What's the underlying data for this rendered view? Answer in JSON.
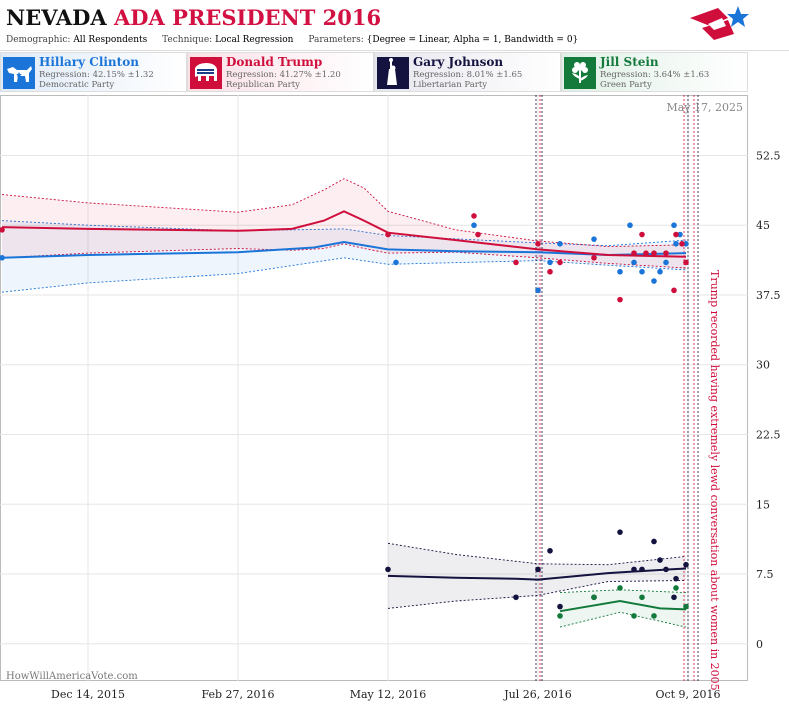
{
  "header": {
    "title_main": "NEVADA",
    "title_sub": "ADA PRESIDENT 2016",
    "params": [
      {
        "key": "Demographic:",
        "value": "All Respondents"
      },
      {
        "key": "Technique:",
        "value": "Local Regression"
      },
      {
        "key": "Parameters:",
        "value": "{Degree = Linear, Alpha = 1, Bandwidth = 0}"
      }
    ]
  },
  "candidates": [
    {
      "name": "Hillary Clinton",
      "regression": "Regression: 42.15% ±1.32",
      "party": "Democratic Party",
      "color": "#1b75d8",
      "bg": "#e6f0fb",
      "icon": "donkey-icon"
    },
    {
      "name": "Donald Trump",
      "regression": "Regression: 41.27% ±1.20",
      "party": "Republican Party",
      "color": "#cf0e3c",
      "bg": "#fbe5ea",
      "icon": "elephant-icon"
    },
    {
      "name": "Gary Johnson",
      "regression": "Regression: 8.01% ±1.65",
      "party": "Libertarian Party",
      "color": "#14123f",
      "bg": "#ececf2",
      "icon": "liberty-statue-icon"
    },
    {
      "name": "Jill Stein",
      "regression": "Regression: 3.64% ±1.63",
      "party": "Green Party",
      "color": "#137a3c",
      "bg": "#e6f3ea",
      "icon": "flower-icon"
    }
  ],
  "chart_data": {
    "type": "scatter",
    "title": "NEVADA ADA PRESIDENT 2016",
    "date_label": "May 17, 2025",
    "watermark": "HowWillAmericaVote.com",
    "annotation": "Trump recorded having extremely lewd conversation about women in 2005",
    "x_ticks": [
      "Dec 14, 2015",
      "Feb 27, 2016",
      "May 12, 2016",
      "Jul 26, 2016",
      "Oct 9, 2016"
    ],
    "x_range": [
      "2015-10-31",
      "2016-11-08"
    ],
    "y_ticks": [
      0,
      7.5,
      15,
      22.5,
      30,
      37.5,
      45,
      52.5
    ],
    "y_range": [
      -4,
      59
    ],
    "grid": true,
    "event_lines": [
      "2016-07-25",
      "2016-07-27",
      "2016-07-28",
      "2016-10-07",
      "2016-10-09",
      "2016-10-12",
      "2016-10-14"
    ],
    "series": [
      {
        "name": "Hillary Clinton",
        "color": "#1b75d8",
        "points": [
          [
            "2015-11-01",
            41.5
          ],
          [
            "2016-05-16",
            41
          ],
          [
            "2016-06-24",
            45
          ],
          [
            "2016-07-26",
            38
          ],
          [
            "2016-08-01",
            41
          ],
          [
            "2016-08-06",
            43
          ],
          [
            "2016-08-23",
            43.5
          ],
          [
            "2016-09-05",
            40
          ],
          [
            "2016-09-10",
            45
          ],
          [
            "2016-09-12",
            41
          ],
          [
            "2016-09-16",
            40
          ],
          [
            "2016-09-22",
            39
          ],
          [
            "2016-09-25",
            40
          ],
          [
            "2016-09-28",
            41
          ],
          [
            "2016-10-02",
            45
          ],
          [
            "2016-10-03",
            43
          ],
          [
            "2016-10-05",
            44
          ],
          [
            "2016-10-08",
            43
          ]
        ],
        "trend": [
          [
            "2015-11-01",
            41.5
          ],
          [
            "2015-12-14",
            41.8
          ],
          [
            "2016-02-27",
            42.1
          ],
          [
            "2016-04-05",
            42.6
          ],
          [
            "2016-04-20",
            43.2
          ],
          [
            "2016-05-12",
            42.4
          ],
          [
            "2016-06-15",
            42.2
          ],
          [
            "2016-07-26",
            42.1
          ],
          [
            "2016-08-30",
            41.8
          ],
          [
            "2016-10-08",
            42.0
          ]
        ],
        "upper": [
          [
            "2015-11-01",
            45.5
          ],
          [
            "2015-12-14",
            45
          ],
          [
            "2016-02-27",
            44.4
          ],
          [
            "2016-04-20",
            44.6
          ],
          [
            "2016-05-12",
            43.9
          ],
          [
            "2016-07-26",
            43.1
          ],
          [
            "2016-08-30",
            42.8
          ],
          [
            "2016-10-08",
            43.4
          ]
        ],
        "lower": [
          [
            "2015-11-01",
            37.8
          ],
          [
            "2015-12-14",
            38.8
          ],
          [
            "2016-02-27",
            39.8
          ],
          [
            "2016-04-20",
            41.5
          ],
          [
            "2016-05-12",
            40.8
          ],
          [
            "2016-07-26",
            41.2
          ],
          [
            "2016-08-30",
            40.7
          ],
          [
            "2016-10-08",
            40.2
          ]
        ]
      },
      {
        "name": "Donald Trump",
        "color": "#cf0e3c",
        "points": [
          [
            "2015-11-01",
            44.5
          ],
          [
            "2016-05-12",
            44
          ],
          [
            "2016-06-24",
            46
          ],
          [
            "2016-06-26",
            44
          ],
          [
            "2016-07-15",
            41
          ],
          [
            "2016-07-26",
            43
          ],
          [
            "2016-08-01",
            40
          ],
          [
            "2016-08-06",
            41
          ],
          [
            "2016-08-23",
            41.5
          ],
          [
            "2016-09-05",
            37
          ],
          [
            "2016-09-12",
            42
          ],
          [
            "2016-09-16",
            44
          ],
          [
            "2016-09-18",
            42
          ],
          [
            "2016-09-22",
            42
          ],
          [
            "2016-09-28",
            42
          ],
          [
            "2016-10-02",
            38
          ],
          [
            "2016-10-03",
            44
          ],
          [
            "2016-10-06",
            43
          ],
          [
            "2016-10-08",
            41
          ]
        ],
        "trend": [
          [
            "2015-11-01",
            44.8
          ],
          [
            "2015-12-14",
            44.6
          ],
          [
            "2016-02-27",
            44.4
          ],
          [
            "2016-03-25",
            44.6
          ],
          [
            "2016-04-10",
            45.5
          ],
          [
            "2016-04-20",
            46.5
          ],
          [
            "2016-04-30",
            45.5
          ],
          [
            "2016-05-12",
            44.2
          ],
          [
            "2016-06-15",
            43.4
          ],
          [
            "2016-07-26",
            42.4
          ],
          [
            "2016-08-30",
            41.8
          ],
          [
            "2016-10-08",
            41.6
          ]
        ],
        "upper": [
          [
            "2015-11-01",
            48.3
          ],
          [
            "2015-12-14",
            47.4
          ],
          [
            "2016-02-27",
            46.4
          ],
          [
            "2016-03-25",
            47.2
          ],
          [
            "2016-04-10",
            48.8
          ],
          [
            "2016-04-20",
            50
          ],
          [
            "2016-04-30",
            49
          ],
          [
            "2016-05-12",
            46.5
          ],
          [
            "2016-06-15",
            44.5
          ],
          [
            "2016-07-26",
            43.3
          ],
          [
            "2016-08-30",
            42.7
          ],
          [
            "2016-10-08",
            42.9
          ]
        ],
        "lower": [
          [
            "2015-11-01",
            41.5
          ],
          [
            "2015-12-14",
            42
          ],
          [
            "2016-02-27",
            42.5
          ],
          [
            "2016-03-25",
            42.3
          ],
          [
            "2016-04-10",
            42.5
          ],
          [
            "2016-04-20",
            43
          ],
          [
            "2016-04-30",
            42.5
          ],
          [
            "2016-05-12",
            42
          ],
          [
            "2016-06-15",
            42.1
          ],
          [
            "2016-07-26",
            41.5
          ],
          [
            "2016-08-30",
            40.9
          ],
          [
            "2016-10-08",
            40.4
          ]
        ]
      },
      {
        "name": "Gary Johnson",
        "color": "#14123f",
        "points": [
          [
            "2016-05-12",
            8
          ],
          [
            "2016-07-15",
            5
          ],
          [
            "2016-07-26",
            8
          ],
          [
            "2016-08-01",
            10
          ],
          [
            "2016-08-06",
            4
          ],
          [
            "2016-08-23",
            5
          ],
          [
            "2016-09-05",
            12
          ],
          [
            "2016-09-12",
            8
          ],
          [
            "2016-09-16",
            8
          ],
          [
            "2016-09-22",
            11
          ],
          [
            "2016-09-25",
            9
          ],
          [
            "2016-09-28",
            8
          ],
          [
            "2016-10-02",
            5
          ],
          [
            "2016-10-03",
            7
          ],
          [
            "2016-10-08",
            8.5
          ]
        ],
        "trend": [
          [
            "2016-05-12",
            7.3
          ],
          [
            "2016-06-15",
            7.1
          ],
          [
            "2016-07-15",
            7.0
          ],
          [
            "2016-07-26",
            6.9
          ],
          [
            "2016-08-30",
            7.6
          ],
          [
            "2016-09-30",
            8.0
          ],
          [
            "2016-10-08",
            8.1
          ]
        ],
        "upper": [
          [
            "2016-05-12",
            10.8
          ],
          [
            "2016-06-15",
            9.6
          ],
          [
            "2016-07-26",
            8.6
          ],
          [
            "2016-08-30",
            8.5
          ],
          [
            "2016-10-08",
            9.4
          ]
        ],
        "lower": [
          [
            "2016-05-12",
            3.8
          ],
          [
            "2016-06-15",
            4.6
          ],
          [
            "2016-07-26",
            5.2
          ],
          [
            "2016-08-30",
            6.7
          ],
          [
            "2016-10-08",
            6.8
          ]
        ]
      },
      {
        "name": "Jill Stein",
        "color": "#137a3c",
        "points": [
          [
            "2016-08-06",
            3
          ],
          [
            "2016-08-23",
            5
          ],
          [
            "2016-09-05",
            6
          ],
          [
            "2016-09-12",
            3
          ],
          [
            "2016-09-16",
            5
          ],
          [
            "2016-09-22",
            3
          ],
          [
            "2016-10-03",
            6
          ],
          [
            "2016-10-08",
            4
          ]
        ],
        "trend": [
          [
            "2016-08-06",
            3.5
          ],
          [
            "2016-09-05",
            4.6
          ],
          [
            "2016-09-25",
            3.8
          ],
          [
            "2016-10-08",
            3.7
          ]
        ],
        "upper": [
          [
            "2016-08-06",
            5.5
          ],
          [
            "2016-09-05",
            5.8
          ],
          [
            "2016-10-08",
            5.5
          ]
        ],
        "lower": [
          [
            "2016-08-06",
            1.8
          ],
          [
            "2016-09-05",
            3.4
          ],
          [
            "2016-10-08",
            1.8
          ]
        ]
      }
    ]
  }
}
